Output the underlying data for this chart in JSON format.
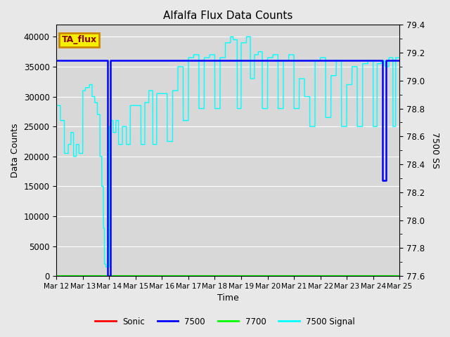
{
  "title": "Alfalfa Flux Data Counts",
  "xlabel": "Time",
  "ylabel_left": "Data Counts",
  "ylabel_right": "7500 SS",
  "annotation": "TA_flux",
  "legend": [
    "Sonic",
    "7500",
    "7700",
    "7500 Signal"
  ],
  "legend_colors": [
    "red",
    "blue",
    "green",
    "cyan"
  ],
  "xlim_days": [
    0,
    13
  ],
  "ylim_left": [
    0,
    42000
  ],
  "ylim_right": [
    77.6,
    79.4
  ],
  "x_ticks_labels": [
    "Mar 12",
    "Mar 13",
    "Mar 14",
    "Mar 15",
    "Mar 16",
    "Mar 17",
    "Mar 18",
    "Mar 19",
    "Mar 20",
    "Mar 21",
    "Mar 22",
    "Mar 23",
    "Mar 24",
    "Mar 25"
  ],
  "bg_color": "#e8e8e8",
  "plot_bg_color": "#d8d8d8",
  "grid_color": "white",
  "figsize": [
    6.4,
    4.8
  ],
  "dpi": 100
}
